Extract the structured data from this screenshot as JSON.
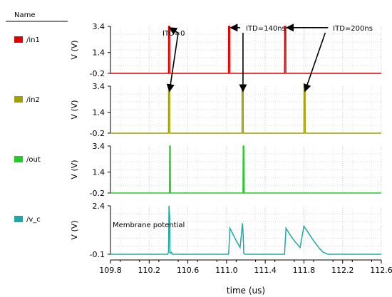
{
  "header": {
    "label": "Name"
  },
  "chart_data": {
    "type": "line",
    "xlabel": "time (us)",
    "xlim": [
      109.8,
      112.6
    ],
    "xticks": [
      "109.8",
      "110.2",
      "110.6",
      "111.0",
      "111.4",
      "111.8",
      "112.2",
      "112.6"
    ],
    "panels": [
      {
        "name": "/in1",
        "color": "#e00000",
        "ylabel": "V (V)",
        "ylim": [
          -0.2,
          3.4
        ],
        "yticks": [
          "3.4",
          "1.4",
          "-0.2"
        ],
        "points": [
          [
            109.8,
            -0.2
          ],
          [
            110.4,
            -0.2
          ],
          [
            110.401,
            3.4
          ],
          [
            110.412,
            3.4
          ],
          [
            110.413,
            -0.2
          ],
          [
            111.02,
            -0.2
          ],
          [
            111.021,
            3.4
          ],
          [
            111.032,
            3.4
          ],
          [
            111.033,
            -0.2
          ],
          [
            111.6,
            -0.2
          ],
          [
            111.601,
            3.4
          ],
          [
            111.612,
            3.4
          ],
          [
            111.613,
            -0.2
          ],
          [
            112.6,
            -0.2
          ]
        ]
      },
      {
        "name": "/in2",
        "color": "#a0a000",
        "ylabel": "V (V)",
        "ylim": [
          -0.2,
          3.4
        ],
        "yticks": [
          "3.4",
          "1.4",
          "-0.2"
        ],
        "points": [
          [
            109.8,
            -0.2
          ],
          [
            110.4,
            -0.2
          ],
          [
            110.401,
            3.4
          ],
          [
            110.412,
            3.4
          ],
          [
            110.413,
            -0.2
          ],
          [
            111.16,
            -0.2
          ],
          [
            111.161,
            3.4
          ],
          [
            111.172,
            3.4
          ],
          [
            111.173,
            -0.2
          ],
          [
            111.8,
            -0.2
          ],
          [
            111.801,
            3.4
          ],
          [
            111.812,
            3.4
          ],
          [
            111.813,
            -0.2
          ],
          [
            112.6,
            -0.2
          ]
        ]
      },
      {
        "name": "/out",
        "color": "#22cc22",
        "ylabel": "V (V)",
        "ylim": [
          -0.2,
          3.4
        ],
        "yticks": [
          "3.4",
          "1.4",
          "-0.2"
        ],
        "points": [
          [
            109.8,
            -0.2
          ],
          [
            110.41,
            -0.2
          ],
          [
            110.412,
            3.4
          ],
          [
            110.418,
            3.4
          ],
          [
            110.42,
            -0.2
          ],
          [
            111.17,
            -0.2
          ],
          [
            111.172,
            3.4
          ],
          [
            111.178,
            3.4
          ],
          [
            111.18,
            -0.2
          ],
          [
            112.6,
            -0.2
          ]
        ]
      },
      {
        "name": "/v_c",
        "color": "#1fa8a8",
        "ylabel": "V (V)",
        "ylim": [
          -0.1,
          2.4
        ],
        "yticks": [
          "2.4",
          "-0.1"
        ],
        "annotation": "Membrane potential",
        "points": [
          [
            109.8,
            -0.1
          ],
          [
            110.39,
            -0.1
          ],
          [
            110.4,
            0.0
          ],
          [
            110.405,
            2.4
          ],
          [
            110.412,
            1.8
          ],
          [
            110.415,
            0.0
          ],
          [
            110.42,
            -0.05
          ],
          [
            110.43,
            0.0
          ],
          [
            110.44,
            -0.1
          ],
          [
            111.02,
            -0.1
          ],
          [
            111.025,
            0.2
          ],
          [
            111.035,
            1.25
          ],
          [
            111.06,
            1.0
          ],
          [
            111.1,
            0.6
          ],
          [
            111.14,
            0.25
          ],
          [
            111.165,
            1.5
          ],
          [
            111.172,
            0.9
          ],
          [
            111.178,
            -0.05
          ],
          [
            111.19,
            -0.1
          ],
          [
            111.6,
            -0.1
          ],
          [
            111.605,
            0.4
          ],
          [
            111.615,
            1.25
          ],
          [
            111.65,
            0.95
          ],
          [
            111.7,
            0.6
          ],
          [
            111.76,
            0.25
          ],
          [
            111.8,
            1.35
          ],
          [
            111.84,
            1.05
          ],
          [
            111.9,
            0.6
          ],
          [
            111.96,
            0.2
          ],
          [
            112.0,
            0.0
          ],
          [
            112.05,
            -0.1
          ],
          [
            112.6,
            -0.1
          ]
        ]
      }
    ],
    "annotations": [
      {
        "text": "ITD=0",
        "panel": 0,
        "x": 110.5,
        "y": 2.9,
        "from": [
          110.5,
          2.9
        ],
        "to": [
          110.41,
          3.3
        ]
      },
      {
        "text": "",
        "panel": 0,
        "x": 110.5,
        "y": 2.9,
        "from": [
          110.5,
          2.9
        ],
        "to": [
          110.41,
          3.0
        ],
        "target_panel": 1
      },
      {
        "text": "ITD=140ns",
        "panel": 0,
        "x": 111.2,
        "y": 3.3,
        "from": [
          111.14,
          3.3
        ],
        "to": [
          111.04,
          3.3
        ]
      },
      {
        "text": "",
        "panel": 0,
        "x": 111.17,
        "y": 2.9,
        "from": [
          111.17,
          2.9
        ],
        "to": [
          111.17,
          3.0
        ],
        "target_panel": 1
      },
      {
        "text": "ITD=200ns",
        "panel": 0,
        "x": 112.1,
        "y": 3.3,
        "from": [
          112.05,
          3.3
        ],
        "to": [
          111.62,
          3.3
        ]
      },
      {
        "text": "",
        "panel": 0,
        "x": 112.02,
        "y": 2.9,
        "from": [
          112.02,
          2.9
        ],
        "to": [
          111.81,
          3.0
        ],
        "target_panel": 1
      }
    ]
  }
}
